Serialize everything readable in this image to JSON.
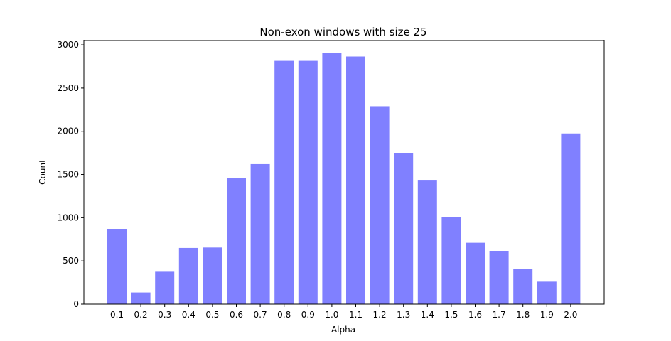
{
  "chart_data": {
    "type": "bar",
    "title": "Non-exon windows with size 25",
    "xlabel": "Alpha",
    "ylabel": "Count",
    "categories": [
      "0.1",
      "0.2",
      "0.3",
      "0.4",
      "0.5",
      "0.6",
      "0.7",
      "0.8",
      "0.9",
      "1.0",
      "1.1",
      "1.2",
      "1.3",
      "1.4",
      "1.5",
      "1.6",
      "1.7",
      "1.8",
      "1.9",
      "2.0"
    ],
    "values": [
      870,
      135,
      375,
      650,
      655,
      1455,
      1620,
      2815,
      2815,
      2905,
      2865,
      2290,
      1750,
      1430,
      1010,
      710,
      615,
      410,
      260,
      1975
    ],
    "ylim": [
      0,
      3050
    ],
    "yticks": [
      0,
      500,
      1000,
      1500,
      2000,
      2500,
      3000
    ],
    "bar_color": "#8080ff",
    "grid": false,
    "legend": "none"
  }
}
